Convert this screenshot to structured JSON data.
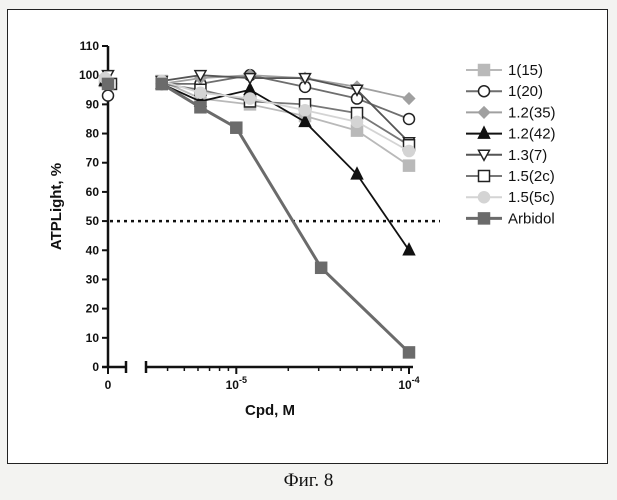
{
  "caption": "Фиг. 8",
  "chart_data": {
    "type": "line",
    "title": "",
    "xlabel": "Cpd, M",
    "ylabel": "ATPLight, %",
    "x_scale": "log",
    "x_axis_break": "between 0 and log region",
    "ylim": [
      0,
      110
    ],
    "xlim_log": [
      3e-06,
      0.0001
    ],
    "y_ticks": [
      "0",
      "10",
      "20",
      "30",
      "40",
      "50",
      "60",
      "70",
      "80",
      "90",
      "100",
      "110"
    ],
    "x_tick_labels": [
      {
        "value": 0,
        "label": "0",
        "exp": ""
      },
      {
        "value": 1e-05,
        "label": "10",
        "exp": "-5"
      },
      {
        "value": 0.0001,
        "label": "10",
        "exp": "-4"
      }
    ],
    "reference_line": {
      "y": 50,
      "style": "dotted"
    },
    "grid": false,
    "legend_position": "right",
    "series": [
      {
        "name": "1(15)",
        "color": "#b9b9b9",
        "marker": "square-filled",
        "points": [
          [
            0,
            98
          ],
          [
            3.7e-06,
            98
          ],
          [
            6.2e-06,
            92
          ],
          [
            1.2e-05,
            90
          ],
          [
            2.5e-05,
            86
          ],
          [
            5e-05,
            81
          ],
          [
            0.0001,
            69
          ]
        ]
      },
      {
        "name": "1(20)",
        "color": "#6e6e6e",
        "marker": "circle-open",
        "points": [
          [
            0,
            93
          ],
          [
            3.7e-06,
            97
          ],
          [
            6.2e-06,
            97
          ],
          [
            1.2e-05,
            100
          ],
          [
            2.5e-05,
            96
          ],
          [
            5e-05,
            92
          ],
          [
            0.0001,
            85
          ]
        ]
      },
      {
        "name": "1.2(35)",
        "color": "#a0a0a0",
        "marker": "diamond-filled",
        "points": [
          [
            0,
            97
          ],
          [
            3.7e-06,
            97
          ],
          [
            6.2e-06,
            99
          ],
          [
            1.2e-05,
            100
          ],
          [
            2.5e-05,
            99
          ],
          [
            5e-05,
            96
          ],
          [
            0.0001,
            92
          ]
        ]
      },
      {
        "name": "1.2(42)",
        "color": "#111111",
        "marker": "triangle-filled",
        "points": [
          [
            0,
            98
          ],
          [
            3.7e-06,
            97
          ],
          [
            6.2e-06,
            91
          ],
          [
            1.2e-05,
            95
          ],
          [
            2.5e-05,
            84
          ],
          [
            5e-05,
            66
          ],
          [
            0.0001,
            40
          ]
        ]
      },
      {
        "name": "1.3(7)",
        "color": "#555555",
        "marker": "triangle-down-open",
        "points": [
          [
            0,
            100
          ],
          [
            3.7e-06,
            98
          ],
          [
            6.2e-06,
            100
          ],
          [
            1.2e-05,
            99
          ],
          [
            2.5e-05,
            99
          ],
          [
            5e-05,
            95
          ],
          [
            0.0001,
            77
          ]
        ]
      },
      {
        "name": "1.5(2c)",
        "color": "#777777",
        "marker": "square-open",
        "points": [
          [
            0,
            97
          ],
          [
            3.7e-06,
            97
          ],
          [
            6.2e-06,
            95
          ],
          [
            1.2e-05,
            91
          ],
          [
            2.5e-05,
            90
          ],
          [
            5e-05,
            87
          ],
          [
            0.0001,
            76
          ]
        ]
      },
      {
        "name": "1.5(5c)",
        "color": "#d4d4d4",
        "marker": "circle-filled",
        "points": [
          [
            0,
            99
          ],
          [
            3.7e-06,
            98
          ],
          [
            6.2e-06,
            94
          ],
          [
            1.2e-05,
            92
          ],
          [
            2.5e-05,
            88
          ],
          [
            5e-05,
            84
          ],
          [
            0.0001,
            74
          ]
        ]
      },
      {
        "name": "Arbidol",
        "color": "#6b6b6b",
        "marker": "square-filled",
        "points": [
          [
            0,
            97
          ],
          [
            3.7e-06,
            97
          ],
          [
            6.2e-06,
            89
          ],
          [
            1e-05,
            82
          ],
          [
            3.1e-05,
            34
          ],
          [
            0.0001,
            5
          ]
        ]
      }
    ]
  }
}
